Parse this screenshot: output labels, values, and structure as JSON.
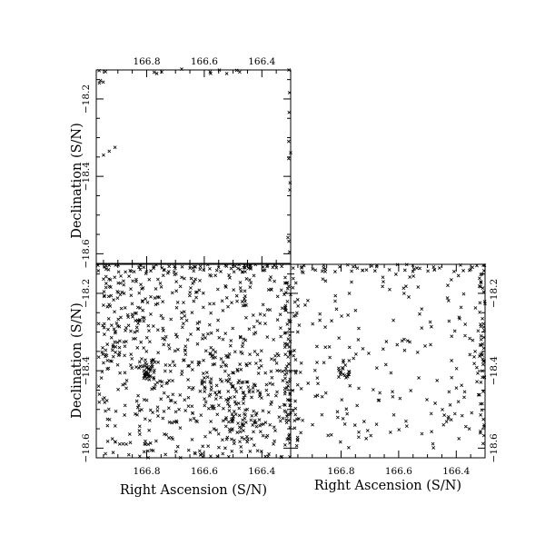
{
  "chart_data": [
    {
      "type": "scatter",
      "panel": "top-left",
      "xlabel": "",
      "ylabel": "Declination (S/N)",
      "xlim": [
        166.975,
        166.3
      ],
      "ylim": [
        -18.625,
        -18.125
      ],
      "xticks": [
        166.8,
        166.6,
        166.4
      ],
      "xticklabels": [
        "166.8",
        "166.6",
        "166.4"
      ],
      "yticks": [
        -18.2,
        -18.4,
        -18.6
      ],
      "yticklabels": [
        "−18.2",
        "−18.4",
        "−18.6"
      ],
      "xtick_position": "top",
      "ytick_position": "left",
      "marker": "x",
      "grid": false,
      "color": "#000000",
      "cloud": [
        {
          "x": [
            166.85,
            166.3
          ],
          "y": [
            -18.135,
            -18.12
          ],
          "n": 14
        },
        {
          "x": [
            166.97,
            166.94
          ],
          "y": [
            -18.16,
            -18.125
          ],
          "n": 5
        },
        {
          "x": [
            166.31,
            166.3
          ],
          "y": [
            -18.6,
            -18.13
          ],
          "n": 10
        }
      ],
      "points": [
        {
          "x": 166.93,
          "y": -18.335
        },
        {
          "x": 166.95,
          "y": -18.345
        },
        {
          "x": 166.91,
          "y": -18.325
        }
      ]
    },
    {
      "type": "scatter",
      "panel": "bottom-left",
      "xlabel": "Right Ascension (S/N)",
      "ylabel": "Declination (S/N)",
      "xlim": [
        166.975,
        166.3
      ],
      "ylim": [
        -18.625,
        -18.125
      ],
      "xticks": [
        166.8,
        166.6,
        166.4
      ],
      "xticklabels": [
        "166.8",
        "166.6",
        "166.4"
      ],
      "yticks": [
        -18.2,
        -18.4,
        -18.6
      ],
      "yticklabels": [
        "−18.2",
        "−18.4",
        "−18.6"
      ],
      "xtick_position": "bottom",
      "ytick_position": "left",
      "marker": "x",
      "grid": false,
      "color": "#000000",
      "cloud": [
        {
          "x": [
            166.97,
            166.3
          ],
          "y": [
            -18.6,
            -18.14
          ],
          "n": 520
        },
        {
          "x": [
            166.97,
            166.3
          ],
          "y": [
            -18.145,
            -18.125
          ],
          "n": 70
        },
        {
          "x": [
            166.97,
            166.3
          ],
          "y": [
            -18.625,
            -18.605
          ],
          "n": 35
        },
        {
          "x": [
            166.32,
            166.3
          ],
          "y": [
            -18.6,
            -18.14
          ],
          "n": 60
        },
        {
          "x": [
            166.81,
            166.77
          ],
          "y": [
            -18.42,
            -18.37
          ],
          "n": 30
        },
        {
          "x": [
            166.6,
            166.4
          ],
          "y": [
            -18.6,
            -18.35
          ],
          "n": 120
        },
        {
          "x": [
            166.95,
            166.8
          ],
          "y": [
            -18.4,
            -18.15
          ],
          "n": 80
        }
      ],
      "points": []
    },
    {
      "type": "scatter",
      "panel": "bottom-right",
      "xlabel": "Right Ascension (S/N)",
      "ylabel": "",
      "xlim": [
        166.975,
        166.3
      ],
      "ylim": [
        -18.625,
        -18.125
      ],
      "xticks": [
        166.8,
        166.6,
        166.4
      ],
      "xticklabels": [
        "166.8",
        "166.6",
        "166.4"
      ],
      "yticks": [
        -18.2,
        -18.4,
        -18.6
      ],
      "yticklabels": [
        "−18.2",
        "−18.4",
        "−18.6"
      ],
      "xtick_position": "bottom",
      "ytick_position": "right",
      "marker": "x",
      "grid": false,
      "color": "#000000",
      "cloud": [
        {
          "x": [
            166.97,
            166.3
          ],
          "y": [
            -18.6,
            -18.14
          ],
          "n": 190
        },
        {
          "x": [
            166.97,
            166.3
          ],
          "y": [
            -18.145,
            -18.125
          ],
          "n": 45
        },
        {
          "x": [
            166.32,
            166.3
          ],
          "y": [
            -18.6,
            -18.14
          ],
          "n": 45
        },
        {
          "x": [
            166.97,
            166.95
          ],
          "y": [
            -18.6,
            -18.14
          ],
          "n": 25
        },
        {
          "x": [
            166.81,
            166.77
          ],
          "y": [
            -18.42,
            -18.37
          ],
          "n": 18
        }
      ],
      "points": []
    }
  ]
}
